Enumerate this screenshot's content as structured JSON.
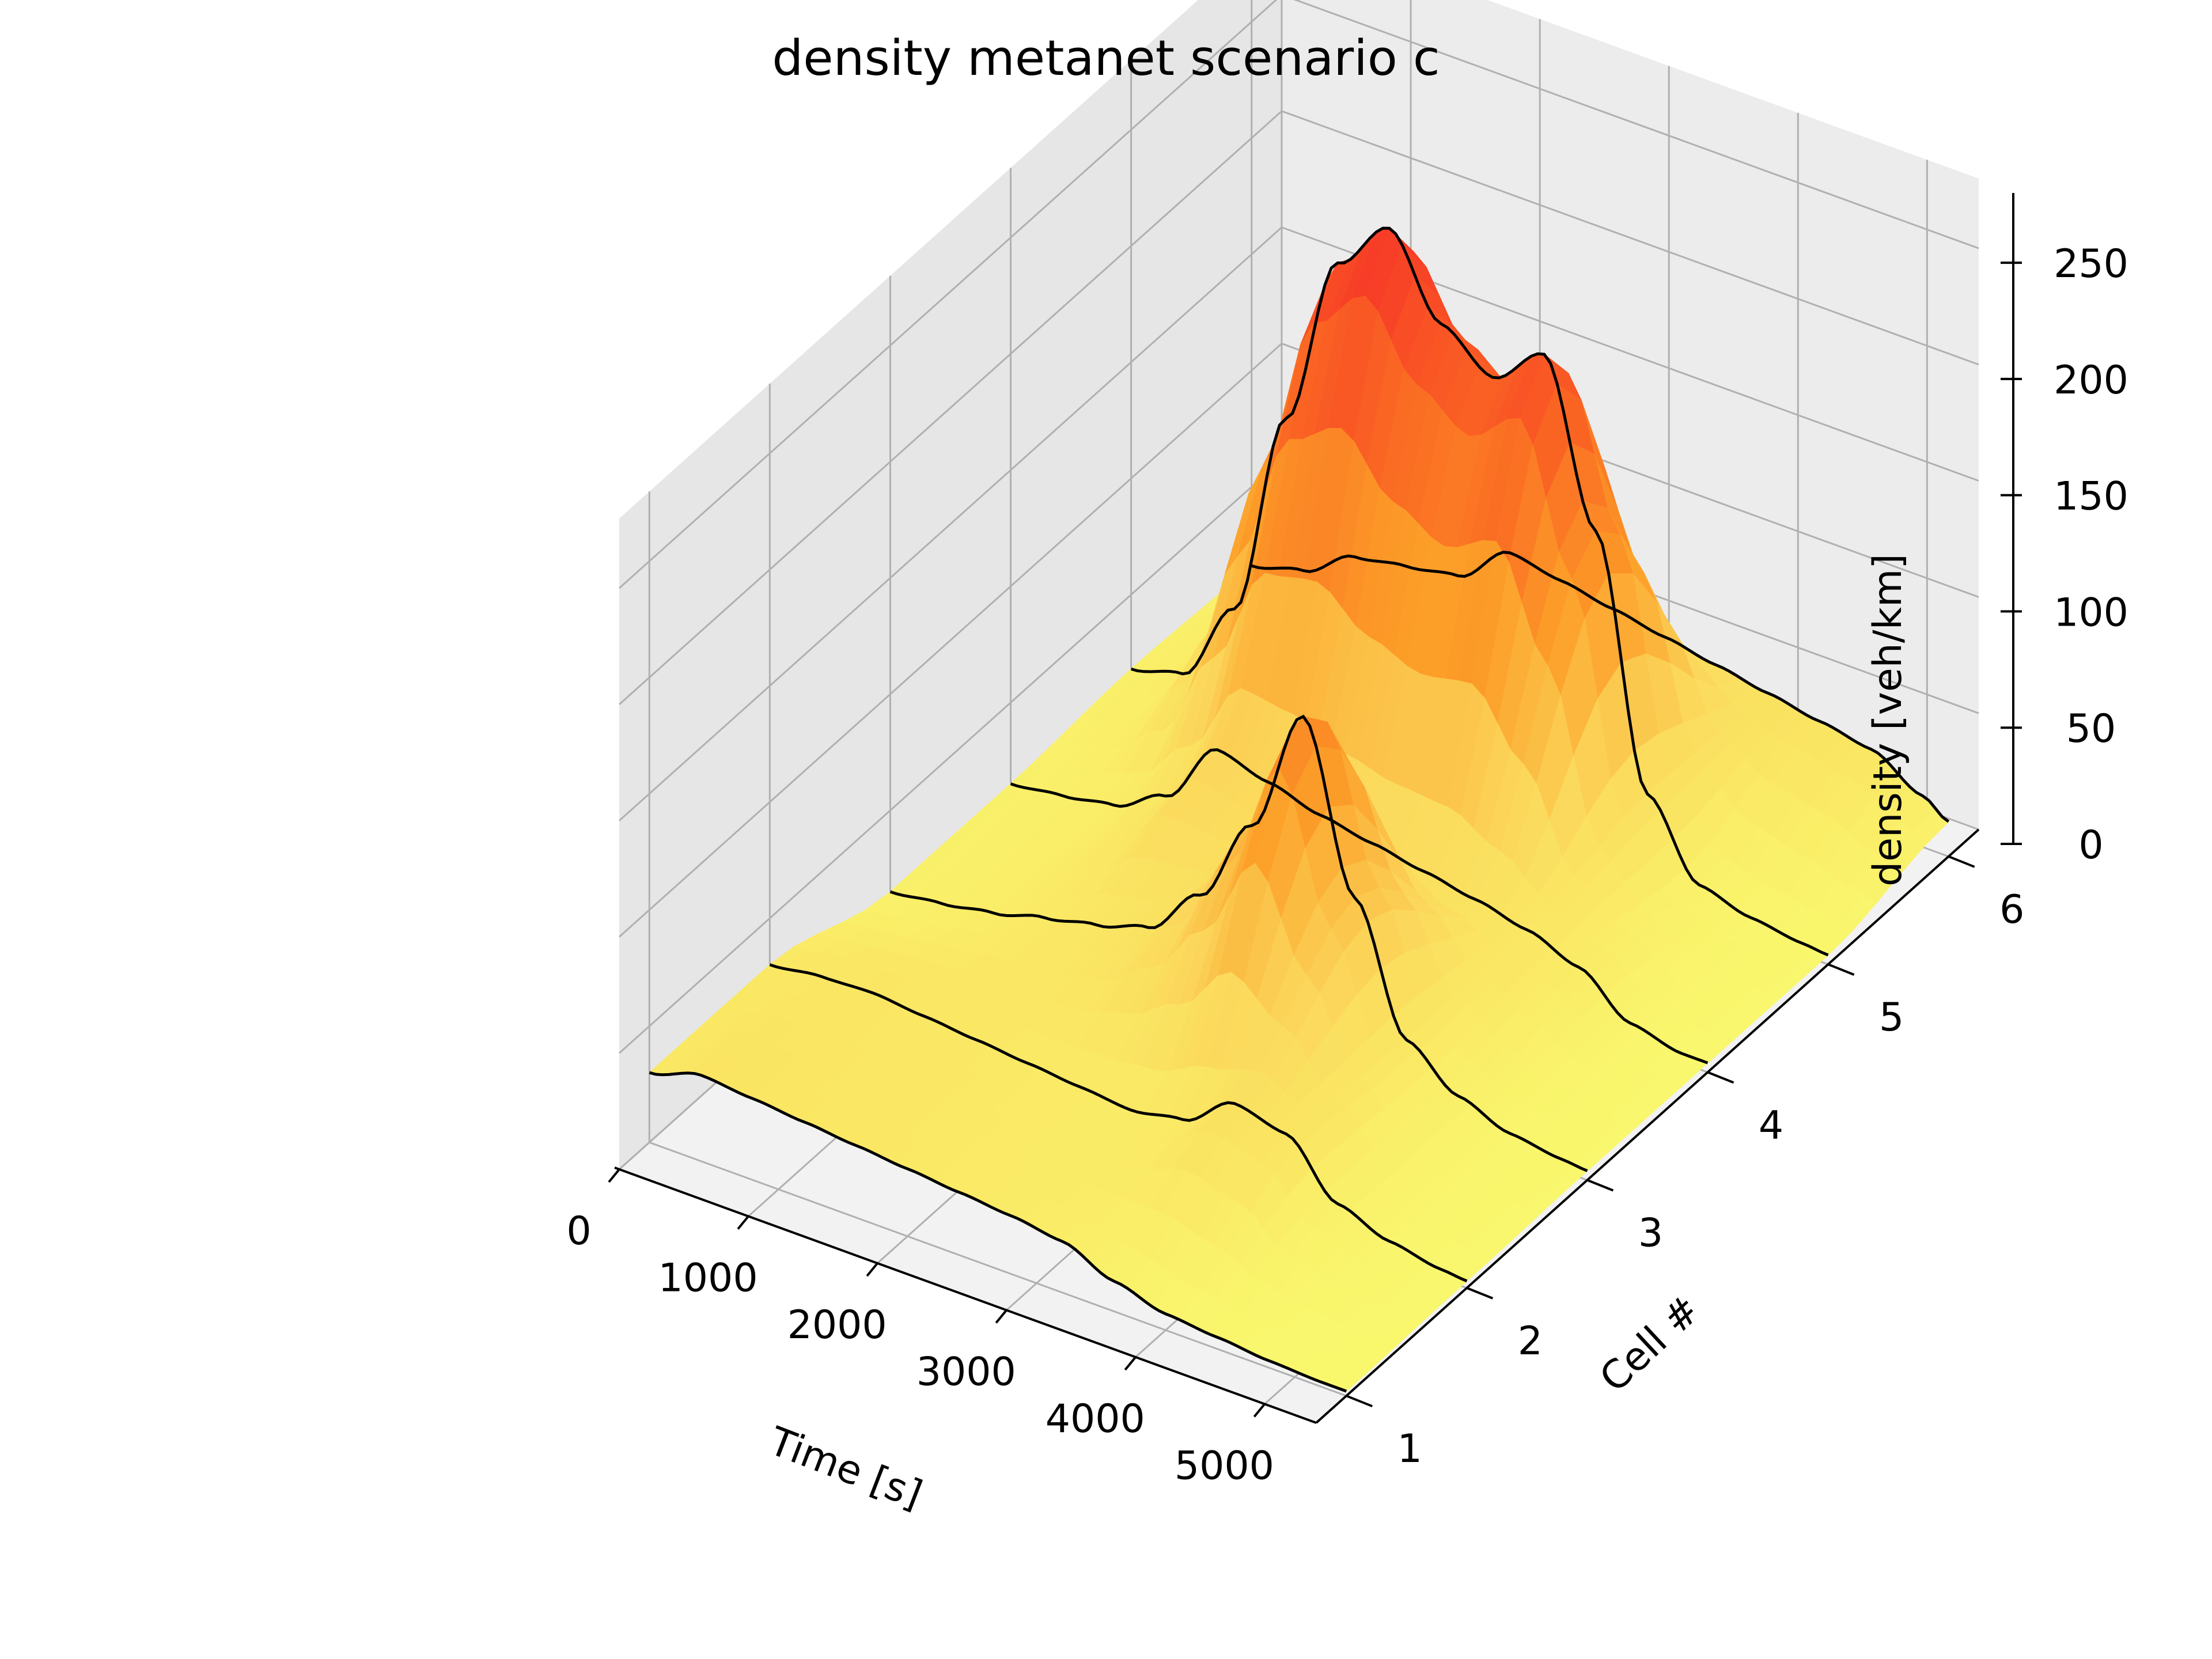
{
  "chart_data": {
    "type": "surface3d",
    "title": "density metanet scenario c",
    "xlabel": "Time [s]",
    "ylabel": "Cell #",
    "zlabel": "density [veh/km]",
    "xlim": [
      0,
      5400
    ],
    "ylim": [
      1,
      6
    ],
    "zlim": [
      0,
      280
    ],
    "x_ticks": [
      "0",
      "1000",
      "2000",
      "3000",
      "4000",
      "5000"
    ],
    "y_ticks": [
      "1",
      "2",
      "3",
      "4",
      "5",
      "6"
    ],
    "z_ticks": [
      "0",
      "50",
      "100",
      "150",
      "200",
      "250"
    ],
    "grid": true,
    "colormap": "yellow-orange-red",
    "series": [
      {
        "name": "1",
        "x": [
          0,
          400,
          800,
          1200,
          1600,
          2000,
          2400,
          2800,
          3200,
          3600,
          4000,
          4400,
          4800,
          5200,
          5400
        ],
        "values": [
          30,
          37,
          35,
          33,
          31,
          29,
          27,
          25,
          22,
          13,
          7,
          5,
          3,
          2,
          2
        ]
      },
      {
        "name": "2",
        "x": [
          0,
          400,
          800,
          1200,
          1600,
          2000,
          2400,
          2800,
          3200,
          3600,
          4000,
          4400,
          4800,
          5200,
          5400
        ],
        "values": [
          30,
          33,
          34,
          32,
          30,
          28,
          26,
          24,
          28,
          43,
          38,
          16,
          8,
          4,
          3
        ]
      },
      {
        "name": "3",
        "x": [
          0,
          400,
          800,
          1200,
          1600,
          2000,
          2400,
          2800,
          3200,
          3600,
          4000,
          4400,
          4800,
          5200,
          5400
        ],
        "values": [
          15,
          18,
          22,
          28,
          33,
          40,
          62,
          100,
          155,
          85,
          32,
          16,
          8,
          5,
          4
        ]
      },
      {
        "name": "4",
        "x": [
          0,
          400,
          800,
          1200,
          1600,
          2000,
          2400,
          2800,
          3200,
          3600,
          4000,
          4400,
          4800,
          5200,
          5400
        ],
        "values": [
          15,
          18,
          22,
          34,
          62,
          56,
          50,
          46,
          42,
          38,
          33,
          25,
          9,
          4,
          4
        ]
      },
      {
        "name": "5",
        "x": [
          0,
          400,
          800,
          1200,
          1600,
          2000,
          2400,
          2800,
          3200,
          3600,
          4000,
          4400,
          4800,
          5200,
          5400
        ],
        "values": [
          18,
          24,
          60,
          150,
          225,
          248,
          215,
          200,
          218,
          150,
          45,
          14,
          8,
          5,
          4
        ]
      },
      {
        "name": "6",
        "x": [
          0,
          400,
          800,
          1200,
          1600,
          2000,
          2400,
          2800,
          3200,
          3600,
          4000,
          4400,
          4800,
          5200,
          5400
        ],
        "values": [
          16,
          22,
          36,
          40,
          44,
          62,
          58,
          54,
          50,
          46,
          42,
          38,
          34,
          22,
          15
        ]
      }
    ]
  }
}
